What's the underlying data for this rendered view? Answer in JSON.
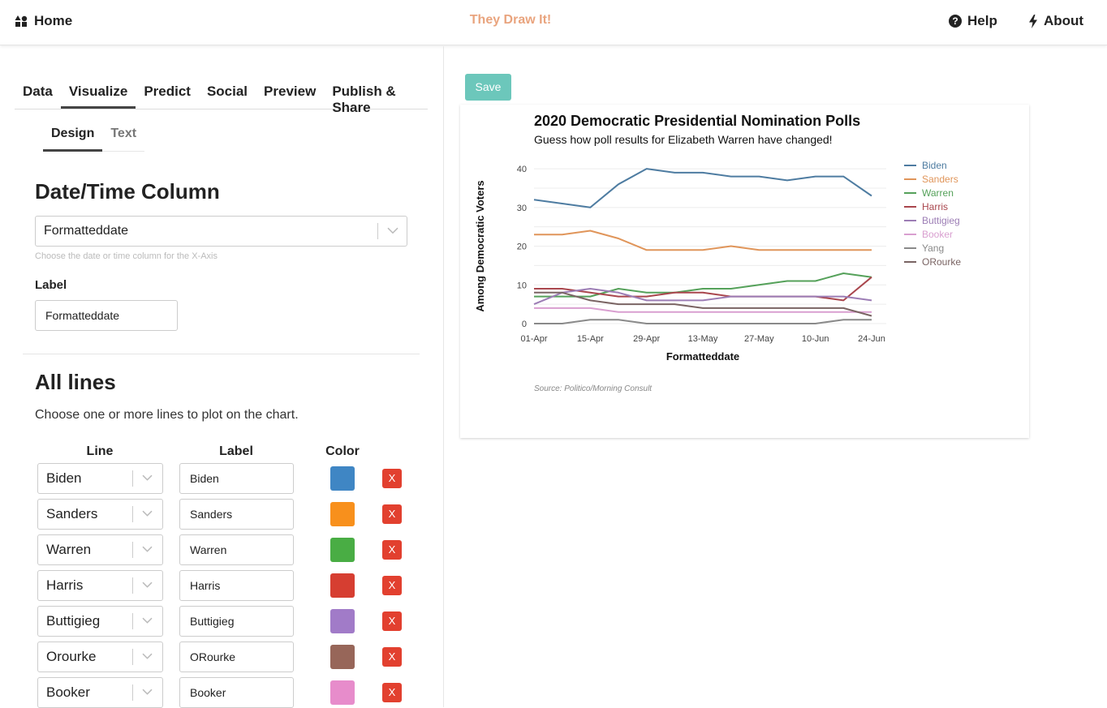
{
  "nav": {
    "home": "Home",
    "brand": "They Draw It!",
    "help": "Help",
    "about": "About"
  },
  "tabs": [
    {
      "label": "Data"
    },
    {
      "label": "Visualize"
    },
    {
      "label": "Predict"
    },
    {
      "label": "Social"
    },
    {
      "label": "Preview"
    },
    {
      "label": "Publish & Share"
    }
  ],
  "subtabs": [
    {
      "label": "Design"
    },
    {
      "label": "Text"
    }
  ],
  "datetime": {
    "heading": "Date/Time Column",
    "selected": "Formatteddate",
    "hint": "Choose the date or time column for the X-Axis",
    "label_title": "Label",
    "label_value": "Formatteddate"
  },
  "all_lines": {
    "heading": "All lines",
    "description": "Choose one or more lines to plot on the chart.",
    "col_line": "Line",
    "col_label": "Label",
    "col_color": "Color",
    "remove_label": "X",
    "rows": [
      {
        "line": "Biden",
        "label": "Biden",
        "color": "#3f86c4"
      },
      {
        "line": "Sanders",
        "label": "Sanders",
        "color": "#f8901c"
      },
      {
        "line": "Warren",
        "label": "Warren",
        "color": "#49ad44"
      },
      {
        "line": "Harris",
        "label": "Harris",
        "color": "#d63e31"
      },
      {
        "line": "Buttigieg",
        "label": "Buttigieg",
        "color": "#a17bc8"
      },
      {
        "line": "Orourke",
        "label": "ORourke",
        "color": "#976659"
      },
      {
        "line": "Booker",
        "label": "Booker",
        "color": "#e78ccb"
      }
    ]
  },
  "save_label": "Save",
  "chart_data": {
    "type": "line",
    "title": "2020 Democratic Presidential Nomination Polls",
    "subtitle": "Guess how poll results for Elizabeth Warren have changed!",
    "xlabel": "Formatteddate",
    "ylabel": "Among Democratic Voters",
    "source": "Source: Politico/Morning Consult",
    "x": [
      "01-Apr",
      "08-Apr",
      "15-Apr",
      "22-Apr",
      "29-Apr",
      "06-May",
      "13-May",
      "20-May",
      "27-May",
      "03-Jun",
      "10-Jun",
      "17-Jun",
      "24-Jun"
    ],
    "x_ticks": [
      "01-Apr",
      "15-Apr",
      "29-Apr",
      "13-May",
      "27-May",
      "10-Jun",
      "24-Jun"
    ],
    "y_ticks": [
      0,
      10,
      20,
      30,
      40
    ],
    "ylim": [
      0,
      44
    ],
    "grid": true,
    "legend_position": "right",
    "series": [
      {
        "name": "Biden",
        "color": "#4e7ca1",
        "values": [
          32,
          31,
          30,
          36,
          40,
          39,
          39,
          38,
          38,
          37,
          38,
          38,
          33
        ]
      },
      {
        "name": "Sanders",
        "color": "#e0955a",
        "values": [
          23,
          23,
          24,
          22,
          19,
          19,
          19,
          20,
          19,
          19,
          19,
          19,
          19
        ]
      },
      {
        "name": "Warren",
        "color": "#55a15a",
        "values": [
          7,
          7,
          7,
          9,
          8,
          8,
          9,
          9,
          10,
          11,
          11,
          13,
          12
        ]
      },
      {
        "name": "Harris",
        "color": "#a9464d",
        "values": [
          9,
          9,
          8,
          7,
          7,
          8,
          8,
          7,
          7,
          7,
          7,
          6,
          12
        ]
      },
      {
        "name": "Buttigieg",
        "color": "#9c7db5",
        "values": [
          5,
          8,
          9,
          8,
          6,
          6,
          6,
          7,
          7,
          7,
          7,
          7,
          6
        ]
      },
      {
        "name": "Booker",
        "color": "#d99fd0",
        "values": [
          4,
          4,
          4,
          3,
          3,
          3,
          3,
          3,
          3,
          3,
          3,
          3,
          3
        ]
      },
      {
        "name": "Yang",
        "color": "#8a8a8a",
        "values": [
          0,
          0,
          1,
          1,
          0,
          0,
          0,
          0,
          0,
          0,
          0,
          1,
          1
        ]
      },
      {
        "name": "ORourke",
        "color": "#7a6463",
        "values": [
          8,
          8,
          6,
          5,
          5,
          5,
          4,
          4,
          4,
          4,
          4,
          4,
          2
        ]
      }
    ]
  }
}
